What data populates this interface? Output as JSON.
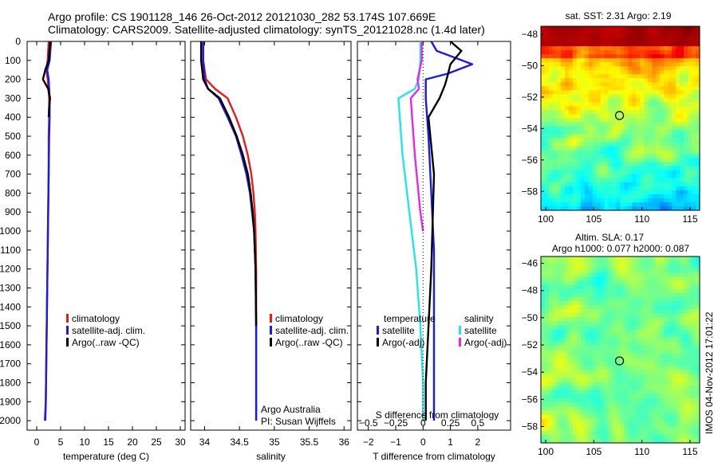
{
  "header": {
    "line1": "Argo profile: CS 1901128_146 26-Oct-2012 20121030_282 53.174S 107.669E",
    "line2": "Climatology: CARS2009. Satellite-adjusted climatology: synTS_20121028.nc (1.4d later)"
  },
  "side_stamp": "IMOS 04-Nov-2012 17:01:22",
  "colors": {
    "climatology": "#e41c1c",
    "satellite": "#1a1ae6",
    "argo": "#000000",
    "salinity_satellite": "#22e6e6",
    "salinity_argo": "#e628e6"
  },
  "chart_data": [
    {
      "type": "line",
      "name": "temperature-profile",
      "xlabel": "temperature (deg C)",
      "ylabel": "",
      "xlim": [
        -2,
        31
      ],
      "ylim": [
        2050,
        0
      ],
      "xticks": [
        0,
        5,
        10,
        15,
        20,
        25,
        30
      ],
      "yticks": [
        0,
        100,
        200,
        300,
        400,
        500,
        600,
        700,
        800,
        900,
        1000,
        1100,
        1200,
        1300,
        1400,
        1500,
        1600,
        1700,
        1800,
        1900,
        2000
      ],
      "legend": [
        "climatology",
        "satellite-adj. clim.",
        "Argo(..raw -QC)"
      ],
      "series": [
        {
          "name": "climatology",
          "color": "#e41c1c",
          "x": [
            2.5,
            2.3,
            2.0,
            2.3,
            2.6,
            2.6,
            2.5,
            2.5,
            2.4,
            2.3,
            2.2,
            2.1,
            2.0,
            1.9,
            1.7
          ],
          "y": [
            0,
            100,
            150,
            200,
            300,
            400,
            500,
            700,
            900,
            1100,
            1300,
            1500,
            1700,
            1900,
            2000
          ]
        },
        {
          "name": "satellite-adj. clim.",
          "color": "#1a1ae6",
          "x": [
            3.0,
            2.7,
            2.2,
            2.5,
            2.7,
            2.7,
            2.6,
            2.5,
            2.4,
            2.3,
            2.2,
            2.1,
            2.0,
            1.9,
            1.8
          ],
          "y": [
            0,
            100,
            150,
            200,
            300,
            400,
            500,
            700,
            900,
            1100,
            1300,
            1500,
            1700,
            1900,
            2000
          ]
        },
        {
          "name": "Argo(..raw -QC)",
          "color": "#000000",
          "x": [
            2.8,
            2.5,
            1.8,
            1.3,
            2.4,
            2.8,
            2.6,
            2.5
          ],
          "y": [
            0,
            100,
            150,
            200,
            250,
            300,
            350,
            400
          ]
        }
      ]
    },
    {
      "type": "line",
      "name": "salinity-profile",
      "xlabel": "salinity",
      "xlim": [
        33.8,
        36.1
      ],
      "ylim": [
        2050,
        0
      ],
      "xticks": [
        34,
        34.5,
        35,
        35.5,
        36
      ],
      "legend": [
        "climatology",
        "satellite-adj. clim.",
        "Argo(..raw -QC)"
      ],
      "annotation": [
        "Argo Australia",
        "PI: Susan Wijffels"
      ],
      "series": [
        {
          "name": "climatology",
          "color": "#e41c1c",
          "x": [
            33.98,
            33.98,
            34.02,
            34.15,
            34.33,
            34.45,
            34.55,
            34.62,
            34.67,
            34.7,
            34.72,
            34.73,
            34.74,
            34.74,
            34.74
          ],
          "y": [
            0,
            100,
            200,
            250,
            300,
            400,
            500,
            600,
            700,
            800,
            900,
            1000,
            1200,
            1500,
            2000
          ]
        },
        {
          "name": "satellite-adj. clim.",
          "color": "#1a1ae6",
          "x": [
            33.98,
            33.98,
            34.0,
            34.05,
            34.2,
            34.33,
            34.45,
            34.53,
            34.6,
            34.65,
            34.68,
            34.71,
            34.73,
            34.74,
            34.74
          ],
          "y": [
            0,
            100,
            200,
            250,
            300,
            400,
            500,
            600,
            700,
            800,
            900,
            1000,
            1200,
            1500,
            2000
          ]
        },
        {
          "name": "Argo(..raw -QC)",
          "color": "#000000",
          "x": [
            33.95,
            33.95,
            33.98,
            34.05,
            34.22,
            34.35,
            34.46,
            34.55,
            34.62,
            34.66,
            34.69,
            34.71,
            34.73,
            34.74
          ],
          "y": [
            0,
            100,
            200,
            250,
            300,
            400,
            500,
            600,
            700,
            800,
            900,
            1000,
            1200,
            1500
          ]
        }
      ]
    },
    {
      "type": "line",
      "name": "difference-profile",
      "xlabel": "T difference from climatology",
      "xlabel_top": "S difference from climatology",
      "xlim": [
        -2.4,
        3.2
      ],
      "ylim": [
        2050,
        0
      ],
      "xticks": [
        -2,
        -1,
        0,
        1,
        2
      ],
      "xticks_s": [
        -0.5,
        -0.25,
        0,
        0.25,
        0.5
      ],
      "legend_groups": [
        {
          "title": "temperature",
          "entries": [
            "satellite",
            "Argo(-adj)"
          ]
        },
        {
          "title": "salinity",
          "entries": [
            "satellite",
            "Argo(-adj)"
          ]
        }
      ],
      "series": [
        {
          "name": "temperature satellite",
          "color": "#1a1ae6",
          "x": [
            0.3,
            0.5,
            1.8,
            0.9,
            0.1,
            0.1,
            0.2,
            0.3,
            0.4,
            0.4,
            0.4
          ],
          "y": [
            0,
            50,
            120,
            170,
            200,
            300,
            500,
            800,
            1100,
            1500,
            2000
          ]
        },
        {
          "name": "temperature Argo(-adj)",
          "color": "#000000",
          "x": [
            1.0,
            1.4,
            1.0,
            0.9,
            0.8,
            0.6,
            0.2,
            0.4,
            0.3,
            0.1,
            0.1
          ],
          "y": [
            0,
            50,
            120,
            180,
            230,
            300,
            400,
            700,
            1200,
            1800,
            2000
          ]
        },
        {
          "name": "salinity satellite",
          "color": "#22e6e6",
          "x": [
            -0.1,
            -0.1,
            -0.15,
            -0.3,
            -0.9,
            -0.75,
            -0.5,
            -0.25,
            -0.1,
            0,
            0
          ],
          "y": [
            0,
            100,
            200,
            250,
            300,
            600,
            900,
            1200,
            1500,
            1800,
            2000
          ]
        },
        {
          "name": "salinity Argo(-adj)",
          "color": "#e628e6",
          "x": [
            -0.05,
            -0.05,
            -0.2,
            -0.15,
            -0.45,
            -0.3,
            -0.1,
            0
          ],
          "y": [
            0,
            100,
            200,
            250,
            300,
            600,
            900,
            1000
          ]
        }
      ]
    },
    {
      "type": "heatmap",
      "name": "sst-map",
      "title": "sat. SST: 2.31  Argo: 2.19",
      "xlim": [
        99.5,
        116
      ],
      "ylim": [
        -59.2,
        -47.5
      ],
      "xticks": [
        100,
        105,
        110,
        115
      ],
      "yticks": [
        -48,
        -50,
        -52,
        -54,
        -56,
        -58
      ],
      "marker": {
        "x": 107.669,
        "y": -53.174
      }
    },
    {
      "type": "heatmap",
      "name": "sla-map",
      "title_lines": [
        "Altim. SLA: 0.17",
        "Argo h1000: 0.077 h2000: 0.087"
      ],
      "xlim": [
        99.5,
        116
      ],
      "ylim": [
        -59.2,
        -45.5
      ],
      "xticks": [
        100,
        105,
        110,
        115
      ],
      "yticks": [
        -46,
        -48,
        -50,
        -52,
        -54,
        -56,
        -58
      ],
      "marker": {
        "x": 107.669,
        "y": -53.174
      }
    }
  ]
}
